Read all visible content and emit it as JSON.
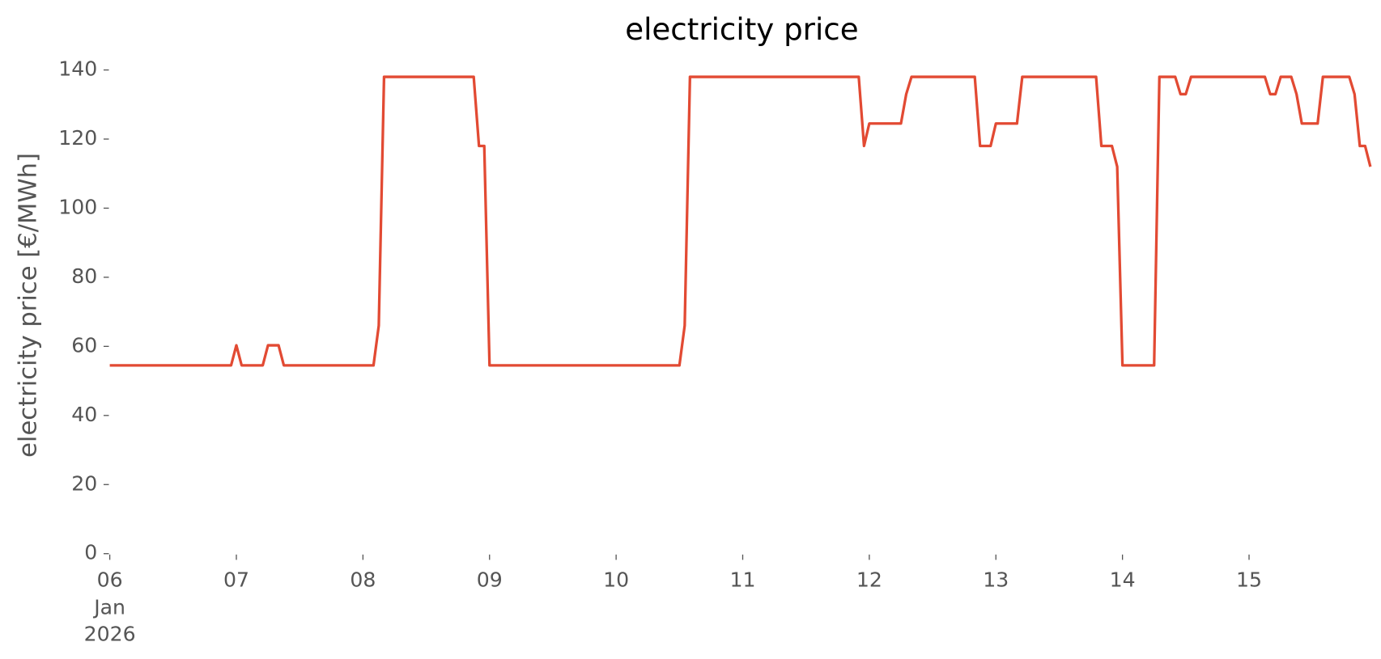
{
  "chart_data": {
    "type": "line",
    "title": "electricity price",
    "ylabel": "electricity price [€/MWh]",
    "x": [
      0,
      23,
      24,
      25,
      29,
      30,
      32,
      33,
      50,
      51,
      52,
      69,
      70,
      71,
      72,
      108,
      109,
      110,
      142,
      143,
      144,
      150,
      151,
      152,
      164,
      165,
      167,
      168,
      172,
      173,
      187,
      188,
      190,
      191,
      192,
      198,
      199,
      202,
      203,
      204,
      205,
      219,
      220,
      221,
      222,
      224,
      225,
      226,
      229,
      230,
      235,
      236,
      237,
      238,
      239
    ],
    "series": [
      {
        "name": "electricity price",
        "color": "#e24a33",
        "values": [
          54.5,
          54.5,
          60.3,
          54.5,
          54.5,
          60.3,
          60.3,
          54.5,
          54.5,
          66,
          138,
          138,
          118,
          118,
          54.5,
          54.5,
          66,
          138,
          138,
          118,
          124.5,
          124.5,
          133,
          138,
          138,
          118,
          118,
          124.5,
          124.5,
          138,
          138,
          118,
          118,
          112,
          54.5,
          54.5,
          138,
          138,
          133,
          133,
          138,
          138,
          133,
          133,
          138,
          138,
          133,
          124.5,
          124.5,
          138,
          138,
          133,
          118,
          118,
          112
        ]
      }
    ],
    "xlim": [
      0,
      239
    ],
    "xticks": [
      {
        "value": 0,
        "label": "06"
      },
      {
        "value": 24,
        "label": "07"
      },
      {
        "value": 48,
        "label": "08"
      },
      {
        "value": 72,
        "label": "09"
      },
      {
        "value": 96,
        "label": "10"
      },
      {
        "value": 120,
        "label": "11"
      },
      {
        "value": 144,
        "label": "12"
      },
      {
        "value": 168,
        "label": "13"
      },
      {
        "value": 192,
        "label": "14"
      },
      {
        "value": 216,
        "label": "15"
      }
    ],
    "xtick_sublabels": [
      "Jan",
      "2026"
    ],
    "ylim": [
      0,
      140
    ],
    "yticks": [
      0,
      20,
      40,
      60,
      80,
      100,
      120,
      140
    ],
    "grid": false
  }
}
